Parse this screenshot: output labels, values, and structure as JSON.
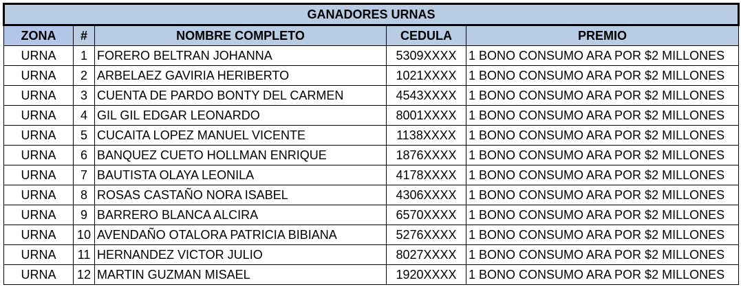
{
  "title": "GANADORES URNAS",
  "columns": [
    "ZONA",
    "#",
    "NOMBRE COMPLETO",
    "CEDULA",
    "PREMIO"
  ],
  "rows": [
    [
      "URNA",
      "1",
      "FORERO BELTRAN JOHANNA",
      "5309XXXX",
      "1 BONO CONSUMO ARA POR $2 MILLONES"
    ],
    [
      "URNA",
      "2",
      "ARBELAEZ GAVIRIA HERIBERTO",
      "1021XXXX",
      "1 BONO CONSUMO ARA POR $2 MILLONES"
    ],
    [
      "URNA",
      "3",
      "CUENTA DE PARDO BONTY DEL CARMEN",
      "4543XXXX",
      "1 BONO CONSUMO ARA POR $2 MILLONES"
    ],
    [
      "URNA",
      "4",
      "GIL GIL EDGAR LEONARDO",
      "8001XXXX",
      "1 BONO CONSUMO ARA POR $2 MILLONES"
    ],
    [
      "URNA",
      "5",
      "CUCAITA LOPEZ MANUEL VICENTE",
      "1138XXXX",
      "1 BONO CONSUMO ARA POR $2 MILLONES"
    ],
    [
      "URNA",
      "6",
      "BANQUEZ CUETO HOLLMAN ENRIQUE",
      "1876XXXX",
      "1 BONO CONSUMO ARA POR $2 MILLONES"
    ],
    [
      "URNA",
      "7",
      "BAUTISTA OLAYA LEONILA",
      "4178XXXX",
      "1 BONO CONSUMO ARA POR $2 MILLONES"
    ],
    [
      "URNA",
      "8",
      "ROSAS CASTAÑO NORA ISABEL",
      "4306XXXX",
      "1 BONO CONSUMO ARA POR $2 MILLONES"
    ],
    [
      "URNA",
      "9",
      "BARRERO BLANCA ALCIRA",
      "6570XXXX",
      "1 BONO CONSUMO ARA POR $2 MILLONES"
    ],
    [
      "URNA",
      "10",
      "AVENDAÑO OTALORA PATRICIA BIBIANA",
      "5276XXXX",
      "1 BONO CONSUMO ARA POR $2 MILLONES"
    ],
    [
      "URNA",
      "11",
      "HERNANDEZ VICTOR JULIO",
      "8027XXXX",
      "1 BONO CONSUMO ARA POR $2 MILLONES"
    ],
    [
      "URNA",
      "12",
      "MARTIN GUZMAN MISAEL",
      "1920XXXX",
      "1 BONO CONSUMO ARA POR $2 MILLONES"
    ]
  ],
  "colors": {
    "header_bg": "#b8cce4",
    "zona_header_bg": "#b4c6e7",
    "border": "#000000"
  }
}
